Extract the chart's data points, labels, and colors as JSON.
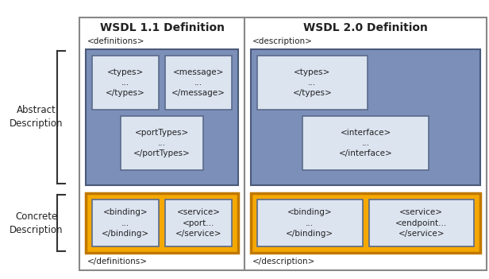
{
  "title_wsdl11": "WSDL 1.1 Definition",
  "title_wsdl20": "WSDL 2.0 Definition",
  "label_abstract": "Abstract\nDescription",
  "label_concrete": "Concrete\nDescription",
  "tag_def_open": "<definitions>",
  "tag_def_close": "</definitions>",
  "tag_desc_open": "<description>",
  "tag_desc_close": "</description>",
  "color_blue_outer": "#7b8fb8",
  "color_orange_outer": "#f5a800",
  "color_inner_box_bg": "#dce4f0",
  "color_inner_box_border": "#5a6a8a",
  "color_white": "#ffffff",
  "color_text": "#222222",
  "color_border": "#888888",
  "color_blue_border": "#4a5a7a"
}
